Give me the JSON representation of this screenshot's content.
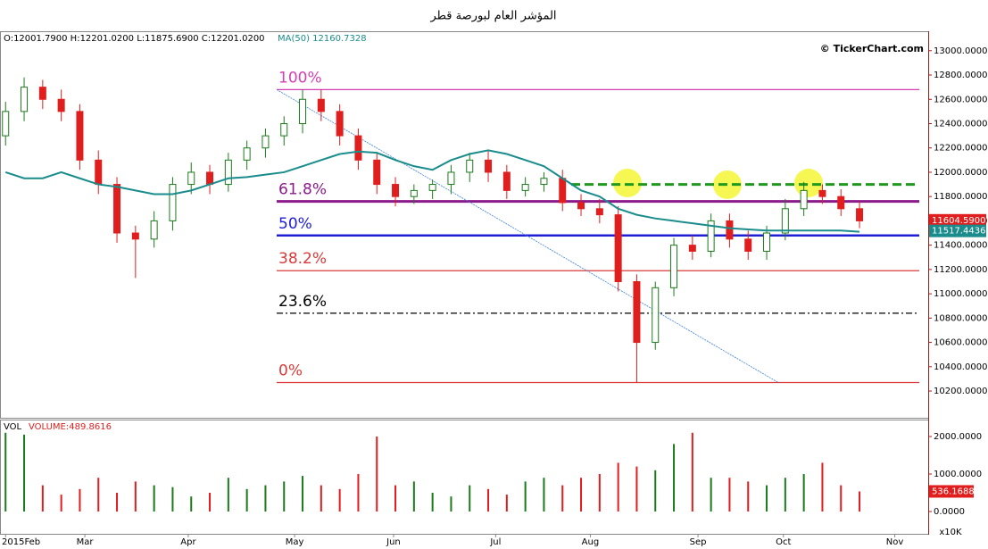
{
  "chart_data": {
    "type": "candlestick",
    "title": "المؤشر العام لبورصة قطر",
    "ohlc_header": "O:12001.7900 H:12201.0200 L:11875.6900 C:12201.0200",
    "ma_header": "MA(50) 12160.7328",
    "watermark": "© TickerChart.com",
    "xlim": [
      -0.3,
      49.7
    ],
    "xticks": [
      {
        "value": 0,
        "label": "2015Feb"
      },
      {
        "value": 4.27,
        "label": "Mar"
      },
      {
        "value": 9.84,
        "label": "Apr"
      },
      {
        "value": 15.57,
        "label": "May"
      },
      {
        "value": 20.9,
        "label": "Jun"
      },
      {
        "value": 26.4,
        "label": "Jul"
      },
      {
        "value": 31.5,
        "label": "Aug"
      },
      {
        "value": 37.3,
        "label": "Sep"
      },
      {
        "value": 41.9,
        "label": "Oct"
      },
      {
        "value": 47.9,
        "label": "Nov"
      }
    ],
    "open": [
      12300,
      12500,
      12700,
      12600,
      12500,
      12100,
      11900,
      11500,
      11450,
      11600,
      11900,
      12000,
      11900,
      12100,
      12200,
      12300,
      12400,
      12600,
      12500,
      12300,
      12100,
      11900,
      11800,
      11850,
      11900,
      12000,
      12100,
      12000,
      11850,
      11900,
      11950,
      11750,
      11700,
      11650,
      11100,
      10600,
      11050,
      11400,
      11350,
      11600,
      11450,
      11350,
      11500,
      11700,
      11850,
      11800,
      11700
    ],
    "high": [
      12580,
      12780,
      12760,
      12680,
      12560,
      12180,
      11960,
      11560,
      11680,
      11960,
      12080,
      12060,
      12160,
      12260,
      12360,
      12460,
      12680,
      12680,
      12560,
      12360,
      12160,
      11960,
      11900,
      11940,
      12060,
      12160,
      12180,
      12060,
      11960,
      12000,
      12020,
      11820,
      11780,
      11720,
      11160,
      11100,
      11460,
      11480,
      11660,
      11660,
      11520,
      11560,
      11780,
      11920,
      11900,
      11860,
      11760
    ],
    "low": [
      12220,
      12420,
      12520,
      12420,
      12020,
      11820,
      11420,
      11130,
      11380,
      11520,
      11820,
      11820,
      11840,
      12020,
      12120,
      12220,
      12320,
      12420,
      12220,
      12020,
      11820,
      11720,
      11740,
      11780,
      11820,
      11920,
      11920,
      11780,
      11800,
      11840,
      11680,
      11640,
      11580,
      11020,
      10270,
      10540,
      10980,
      11280,
      11300,
      11380,
      11280,
      11280,
      11440,
      11640,
      11740,
      11640,
      11540
    ],
    "close": [
      12500,
      12700,
      12600,
      12500,
      12100,
      11900,
      11500,
      11450,
      11600,
      11900,
      12000,
      11900,
      12100,
      12200,
      12300,
      12400,
      12600,
      12500,
      12300,
      12100,
      11900,
      11800,
      11850,
      11900,
      12000,
      12100,
      12000,
      11850,
      11900,
      11950,
      11750,
      11700,
      11650,
      11100,
      10600,
      11050,
      11400,
      11350,
      11600,
      11450,
      11350,
      11500,
      11700,
      11850,
      11800,
      11700,
      11600
    ],
    "up_color": "#1b7a1b",
    "down_color": "#e01e1e",
    "ma": {
      "color": "#1a8c8c",
      "values": [
        12000,
        11950,
        11950,
        12000,
        11950,
        11900,
        11880,
        11850,
        11820,
        11820,
        11850,
        11900,
        11950,
        11960,
        11980,
        12000,
        12050,
        12100,
        12150,
        12170,
        12160,
        12100,
        12050,
        12020,
        12100,
        12150,
        12180,
        12150,
        12100,
        12050,
        11950,
        11850,
        11800,
        11700,
        11650,
        11620,
        11600,
        11580,
        11560,
        11540,
        11530,
        11520,
        11520,
        11520,
        11520,
        11520,
        11510
      ]
    },
    "ylim": [
      9980,
      13160
    ],
    "yticks": [
      {
        "value": 10200,
        "label": "10200.0000"
      },
      {
        "value": 10400,
        "label": "10400.0000"
      },
      {
        "value": 10600,
        "label": "10600.0000"
      },
      {
        "value": 10800,
        "label": "10800.0000"
      },
      {
        "value": 11000,
        "label": "11000.0000"
      },
      {
        "value": 11200,
        "label": "11200.0000"
      },
      {
        "value": 11400,
        "label": "11400.0000"
      },
      {
        "value": 11600,
        "label": "11600.0000"
      },
      {
        "value": 11800,
        "label": "11800.0000"
      },
      {
        "value": 12000,
        "label": "12000.0000"
      },
      {
        "value": 12200,
        "label": "12200.0000"
      },
      {
        "value": 12400,
        "label": "12400.0000"
      },
      {
        "value": 12600,
        "label": "12600.0000"
      },
      {
        "value": 12800,
        "label": "12800.0000"
      },
      {
        "value": 13000,
        "label": "13000.0000"
      }
    ],
    "last_price": {
      "value": 11604.59,
      "label": "11604.5900"
    },
    "last_ma": {
      "value": 11517.4436,
      "label": "11517.4436"
    },
    "fib": [
      {
        "label": "100%",
        "value": 12680,
        "color": "#d63fb3"
      },
      {
        "label": "61.8%",
        "value": 11760,
        "color": "#8b1a8b"
      },
      {
        "label": "50%",
        "value": 11480,
        "color": "#1f1fd6"
      },
      {
        "label": "38.2%",
        "value": 11190,
        "color": "#d93a3a"
      },
      {
        "label": "23.6%",
        "value": 10840,
        "color": "#000000"
      },
      {
        "label": "0%",
        "value": 10270,
        "color": "#d93a3a"
      }
    ],
    "resistance": {
      "value": 11900,
      "color": "#1f9a1f"
    },
    "trendline": [
      12680,
      10270
    ],
    "volume": {
      "title": "VOL",
      "header": "VOLUME:489.8616",
      "unit": "x10K",
      "values": [
        2100,
        2050,
        700,
        450,
        600,
        900,
        500,
        800,
        700,
        650,
        400,
        500,
        900,
        600,
        700,
        800,
        950,
        700,
        600,
        1000,
        2000,
        700,
        800,
        500,
        400,
        700,
        600,
        450,
        800,
        900,
        700,
        900,
        1000,
        1300,
        1200,
        1100,
        1800,
        2100,
        900,
        900,
        800,
        700,
        900,
        1000,
        1300,
        700,
        536.1688
      ],
      "ylim": [
        -595,
        2452
      ],
      "yticks": [
        {
          "value": 0,
          "label": "0.0000"
        },
        {
          "value": 1000,
          "label": "1000.0000"
        },
        {
          "value": 2000,
          "label": "2000.0000"
        }
      ]
    }
  }
}
